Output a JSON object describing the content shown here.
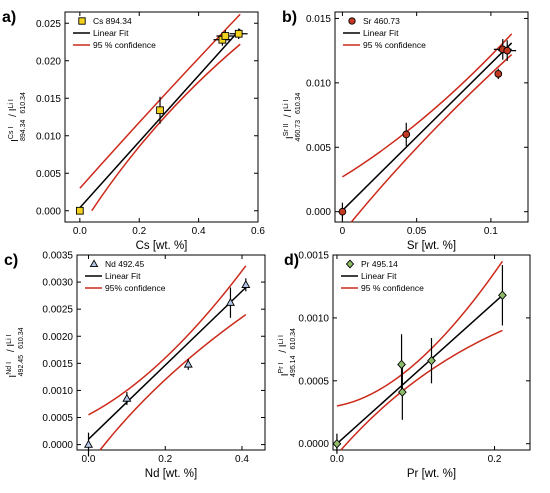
{
  "colors": {
    "fit": "#000000",
    "confidence": "#cc2a1a",
    "error_bar": "#000000"
  },
  "chart_data": [
    {
      "panel": "a)",
      "type": "scatter",
      "marker": "square",
      "marker_color": "#f2d21c",
      "xlabel": "Cs [wt. %]",
      "ylabel": {
        "pre": "I",
        "sup1": "Cs I",
        "sub1": "894.34",
        "mid": " / I",
        "sup2": "Li I",
        "sub2": "610.34"
      },
      "xlim": [
        -0.05,
        0.6
      ],
      "ylim": [
        -0.0015,
        0.0265
      ],
      "xticks": [
        "0.0",
        "0.2",
        "0.4",
        "0.6"
      ],
      "yticks": [
        "0.000",
        "0.005",
        "0.010",
        "0.015",
        "0.020",
        "0.025"
      ],
      "legend": {
        "position": "top-left",
        "entries": [
          "Cs 894.34",
          "Linear Fit",
          "95 % confidence"
        ]
      },
      "points": [
        {
          "x": 0.0,
          "y": 0.0,
          "yerr": 0.0,
          "xerr": 0.0
        },
        {
          "x": 0.27,
          "y": 0.0134,
          "yerr": 0.0018,
          "xerr": 0.0
        },
        {
          "x": 0.48,
          "y": 0.0228,
          "yerr": 0.0008,
          "xerr": 0.03
        },
        {
          "x": 0.49,
          "y": 0.0233,
          "yerr": 0.0008,
          "xerr": 0.03
        },
        {
          "x": 0.535,
          "y": 0.0236,
          "yerr": 0.0007,
          "xerr": 0.03
        }
      ],
      "fit": {
        "x0": 0.0,
        "y0": 0.0004,
        "x1": 0.54,
        "y1": 0.0242
      },
      "conf_upper": [
        [
          0.0,
          0.003
        ],
        [
          0.27,
          0.0148
        ],
        [
          0.54,
          0.0262
        ]
      ],
      "conf_lower": [
        [
          0.04,
          0.0
        ],
        [
          0.27,
          0.0118
        ],
        [
          0.54,
          0.0222
        ]
      ]
    },
    {
      "panel": "b)",
      "type": "scatter",
      "marker": "circle",
      "marker_color": "#c23a22",
      "xlabel": "Sr [wt. %]",
      "ylabel": {
        "pre": "I",
        "sup1": "Sr II",
        "sub1": "460.73",
        "mid": " / I",
        "sup2": "Li I",
        "sub2": "610.34"
      },
      "xlim": [
        -0.005,
        0.125
      ],
      "ylim": [
        -0.0008,
        0.0155
      ],
      "xticks": [
        "0",
        "0.05",
        "0.1"
      ],
      "yticks": [
        "0.000",
        "0.005",
        "0.010",
        "0.015"
      ],
      "legend": {
        "position": "top-left",
        "entries": [
          "Sr 460.73",
          "Linear Fit",
          "95 % confidence"
        ]
      },
      "points": [
        {
          "x": 0.0,
          "y": 0.0,
          "yerr": 0.0007,
          "xerr": 0.0
        },
        {
          "x": 0.043,
          "y": 0.006,
          "yerr": 0.0009,
          "xerr": 0.0
        },
        {
          "x": 0.105,
          "y": 0.0107,
          "yerr": 0.0004,
          "xerr": 0.0
        },
        {
          "x": 0.108,
          "y": 0.0126,
          "yerr": 0.0008,
          "xerr": 0.006
        },
        {
          "x": 0.111,
          "y": 0.0125,
          "yerr": 0.0008,
          "xerr": 0.006
        }
      ],
      "fit": {
        "x0": 0.0,
        "y0": 0.0001,
        "x1": 0.114,
        "y1": 0.0131
      },
      "conf_upper": [
        [
          0.0,
          0.0027
        ],
        [
          0.057,
          0.0075
        ],
        [
          0.114,
          0.0138
        ]
      ],
      "conf_lower": [
        [
          0.006,
          -0.0008
        ],
        [
          0.057,
          0.0058
        ],
        [
          0.114,
          0.0122
        ]
      ]
    },
    {
      "panel": "c)",
      "type": "scatter",
      "marker": "triangle",
      "marker_color": "#b3c6e8",
      "xlabel": "Nd [wt. %]",
      "ylabel": {
        "pre": "I",
        "sup1": "Nd I",
        "sub1": "492.45",
        "mid": " / I",
        "sup2": "Li I",
        "sub2": "610.34"
      },
      "xlim": [
        -0.03,
        0.46
      ],
      "ylim": [
        -0.0001,
        0.0035
      ],
      "xticks": [
        "0.0",
        "0.2",
        "0.4"
      ],
      "yticks": [
        "0.0000",
        "0.0005",
        "0.0010",
        "0.0015",
        "0.0020",
        "0.0025",
        "0.0030",
        "0.0035"
      ],
      "legend": {
        "position": "top-left",
        "entries": [
          "Nd 492.45",
          "Linear Fit",
          "95% confidence"
        ]
      },
      "points": [
        {
          "x": 0.0,
          "y": 0.0,
          "yerr": 0.00022,
          "xerr": 0.0
        },
        {
          "x": 0.1,
          "y": 0.00085,
          "yerr": 0.00012,
          "xerr": 0.0
        },
        {
          "x": 0.26,
          "y": 0.00148,
          "yerr": 0.0001,
          "xerr": 0.0
        },
        {
          "x": 0.37,
          "y": 0.00262,
          "yerr": 0.00028,
          "xerr": 0.0
        },
        {
          "x": 0.41,
          "y": 0.00295,
          "yerr": 0.00012,
          "xerr": 0.0
        }
      ],
      "fit": {
        "x0": 0.0,
        "y0": 0.0001,
        "x1": 0.41,
        "y1": 0.0029
      },
      "conf_upper": [
        [
          0.0,
          0.00055
        ],
        [
          0.2,
          0.0016
        ],
        [
          0.41,
          0.0033
        ]
      ],
      "conf_lower": [
        [
          0.03,
          -0.0001
        ],
        [
          0.2,
          0.0012
        ],
        [
          0.41,
          0.0024
        ]
      ]
    },
    {
      "panel": "d)",
      "type": "scatter",
      "marker": "diamond",
      "marker_color": "#8fbc6a",
      "xlabel": "Pr [wt. %]",
      "ylabel": {
        "pre": "I",
        "sup1": "Pr I",
        "sub1": "495.14",
        "mid": " / I",
        "sup2": "Li I",
        "sub2": "610.34"
      },
      "xlim": [
        -0.005,
        0.245
      ],
      "ylim": [
        -5e-05,
        0.0015
      ],
      "xticks": [
        "0.0",
        "0.2"
      ],
      "yticks": [
        "0.0000",
        "0.0005",
        "0.0010",
        "0.0015"
      ],
      "legend": {
        "position": "top-left",
        "entries": [
          "Pr 495.14",
          "Linear Fit",
          "95 % confidence"
        ]
      },
      "points": [
        {
          "x": 0.0,
          "y": 0.0,
          "yerr": 8e-05,
          "xerr": 0.0
        },
        {
          "x": 0.082,
          "y": 0.00063,
          "yerr": 0.00024,
          "xerr": 0.0
        },
        {
          "x": 0.083,
          "y": 0.00041,
          "yerr": 0.00022,
          "xerr": 0.0
        },
        {
          "x": 0.12,
          "y": 0.00066,
          "yerr": 0.00018,
          "xerr": 0.0
        },
        {
          "x": 0.21,
          "y": 0.00118,
          "yerr": 0.00024,
          "xerr": 0.0
        }
      ],
      "fit": {
        "x0": 0.0,
        "y0": 0.0,
        "x1": 0.21,
        "y1": 0.00118
      },
      "conf_upper": [
        [
          0.0,
          0.0003
        ],
        [
          0.1,
          0.00064
        ],
        [
          0.21,
          0.00145
        ]
      ],
      "conf_lower": [
        [
          0.005,
          -5e-05
        ],
        [
          0.1,
          0.0005
        ],
        [
          0.21,
          0.0009
        ]
      ]
    }
  ]
}
